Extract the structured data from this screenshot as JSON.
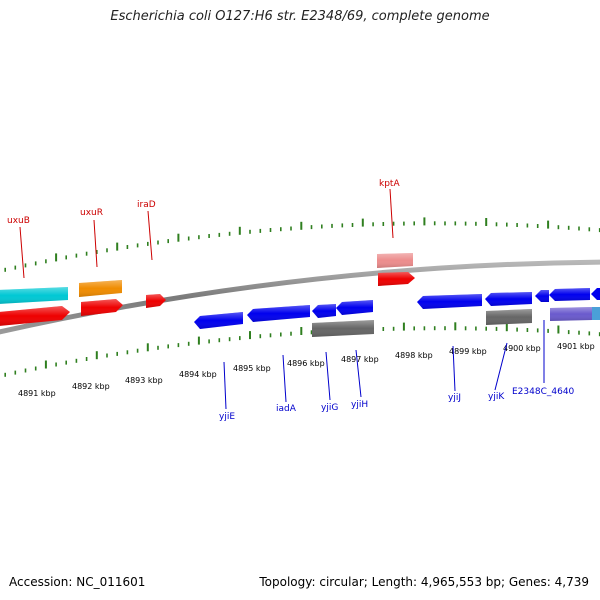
{
  "title": "Escherichia coli O127:H6 str. E2348/69, complete genome",
  "footer": {
    "accession": "Accession: NC_011601",
    "topology": "Topology: circular; Length: 4,965,553 bp; Genes: 4,739"
  },
  "colors": {
    "forward_label": "#cc0000",
    "reverse_label": "#0000cc",
    "tick": "#2f7f1f",
    "cyan": "#00c8d4",
    "orange": "#f08c00",
    "red": "#ee0000",
    "pink": "#ec8c8c",
    "blue": "#0000ee",
    "gray": "#666666",
    "slate": "#6a5acd",
    "steelblue": "#4aa0d8"
  },
  "scale": {
    "unit": "kbp",
    "ticks": [
      "4891 kbp",
      "4892 kbp",
      "4893 kbp",
      "4894 kbp",
      "4895 kbp",
      "4896 kbp",
      "4897 kbp",
      "4898 kbp",
      "4899 kbp",
      "4900 kbp",
      "4901 kbp"
    ]
  },
  "forward_genes": [
    {
      "name": "uxuB",
      "color": "#ee0000"
    },
    {
      "name": "uxuR",
      "color": "#f08c00"
    },
    {
      "name": "iraD",
      "color": "#ee0000"
    },
    {
      "name": "kptA",
      "color": "#ee0000"
    }
  ],
  "reverse_genes": [
    {
      "name": "yjiE",
      "color": "#0000ee"
    },
    {
      "name": "iadA",
      "color": "#0000ee"
    },
    {
      "name": "yjiG",
      "color": "#0000ee"
    },
    {
      "name": "yjiH",
      "color": "#0000ee"
    },
    {
      "name": "yjiJ",
      "color": "#0000ee"
    },
    {
      "name": "yjiK",
      "color": "#0000ee"
    },
    {
      "name": "E2348C_4640",
      "color": "#6a5acd"
    }
  ]
}
